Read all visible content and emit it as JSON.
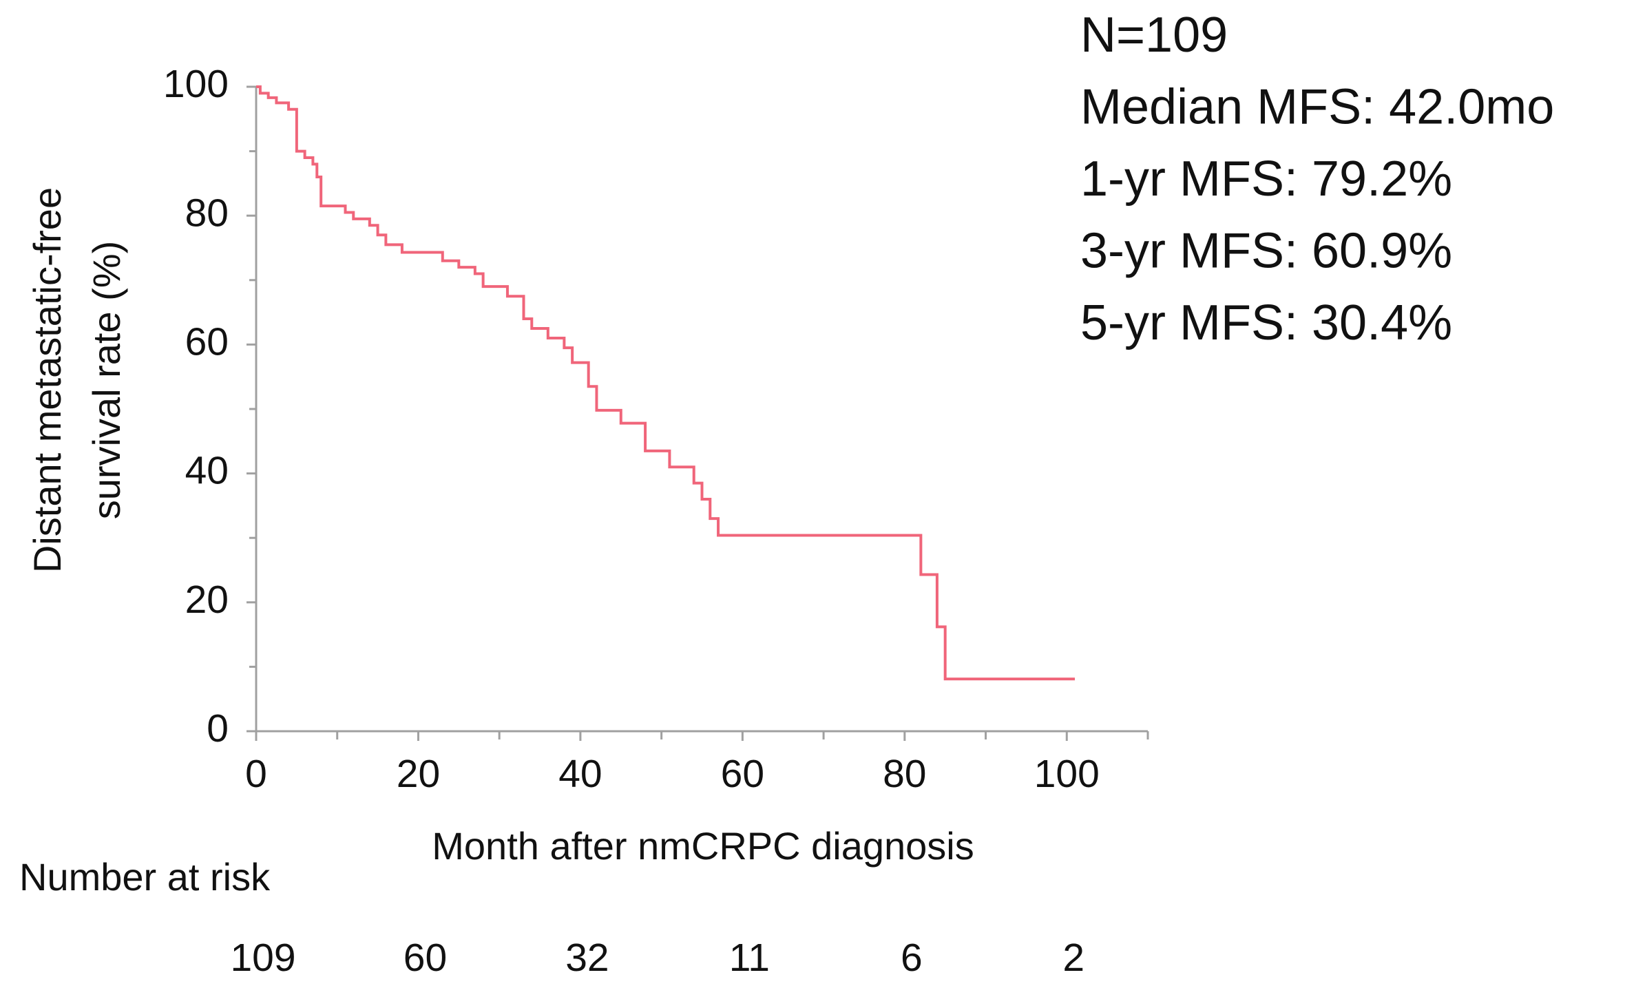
{
  "chart_data": {
    "type": "step",
    "xlabel": "Month after nmCRPC diagnosis",
    "ylabel": [
      "Distant metastatic-free",
      "survival  rate (%)"
    ],
    "annotations": [
      "N=109",
      "Median MFS: 42.0mo",
      "1-yr MFS: 79.2%",
      "3-yr MFS: 60.9%",
      "5-yr MFS: 30.4%"
    ],
    "risk_table": {
      "label": "Number at risk",
      "values": [
        109,
        60,
        32,
        11,
        6,
        2
      ]
    },
    "xlim": [
      0,
      110
    ],
    "ylim": [
      0,
      100
    ],
    "xticks": [
      0,
      20,
      40,
      60,
      80,
      100
    ],
    "yticks": [
      0,
      20,
      40,
      60,
      80,
      100
    ],
    "xminorticks": [
      10,
      30,
      50,
      70,
      90,
      110
    ],
    "yminorticks": [
      10,
      30,
      50,
      70,
      90
    ],
    "grid": false,
    "series": [
      {
        "color": "#f0657a",
        "x": [
          0,
          0.5,
          0.5,
          1.5,
          1.5,
          2.5,
          2.5,
          4,
          4,
          5,
          5,
          6,
          6,
          7,
          7,
          7.5,
          7.5,
          8,
          8,
          11,
          11,
          12,
          12,
          14,
          14,
          15,
          15,
          16,
          16,
          18,
          18,
          23,
          23,
          25,
          25,
          27,
          27,
          28,
          28,
          31,
          31,
          33,
          33,
          34,
          34,
          36,
          36,
          38,
          38,
          39,
          39,
          41,
          41,
          42,
          42,
          45,
          45,
          48,
          48,
          51,
          51,
          54,
          54,
          55,
          55,
          56,
          56,
          57,
          57,
          82,
          82,
          84,
          84,
          85,
          85,
          101
        ],
        "values": [
          100,
          100,
          99,
          99,
          98.3,
          98.3,
          97.5,
          97.5,
          96.5,
          96.5,
          90,
          90,
          89,
          89,
          88,
          88,
          86,
          86,
          81.5,
          81.5,
          80.5,
          80.5,
          79.5,
          79.5,
          78.5,
          78.5,
          77,
          77,
          75.5,
          75.5,
          74.3,
          74.3,
          73,
          73,
          72,
          72,
          71,
          71,
          69,
          69,
          67.5,
          67.5,
          64,
          64,
          62.5,
          62.5,
          61,
          61,
          59.5,
          59.5,
          57.2,
          57.2,
          53.5,
          53.5,
          49.8,
          49.8,
          47.8,
          47.8,
          43.5,
          43.5,
          41,
          41,
          38.5,
          38.5,
          36,
          36,
          33,
          33,
          30.4,
          30.4,
          24.3,
          24.3,
          16.2,
          16.2,
          8.1,
          8.1
        ]
      }
    ]
  }
}
